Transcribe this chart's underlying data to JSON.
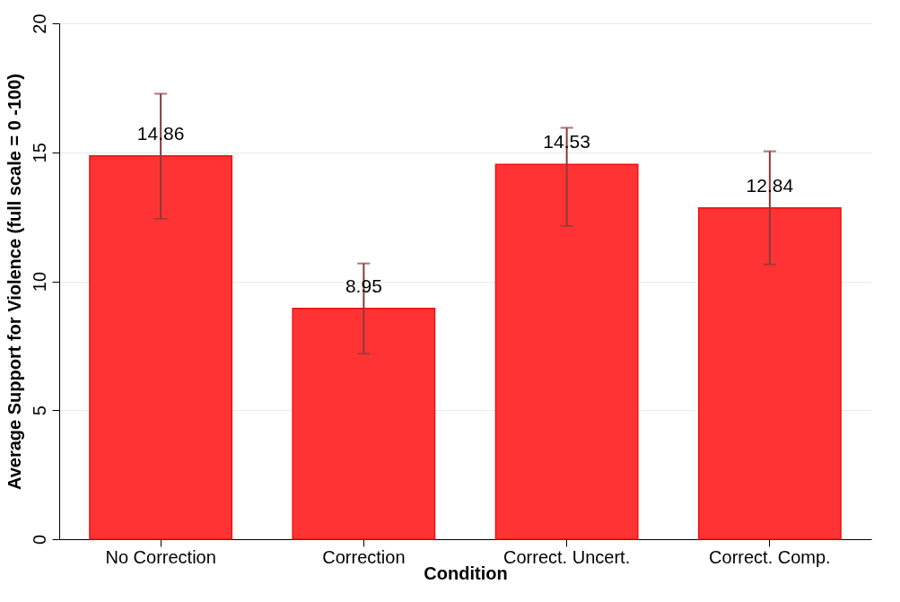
{
  "chart_data": {
    "type": "bar",
    "xlabel": "Condition",
    "ylabel": "Average Support for Violence (full scale = 0 -100)",
    "categories": [
      "No Correction",
      "Correction",
      "Correct. Uncert.",
      "Correct. Comp."
    ],
    "values": [
      14.86,
      8.95,
      14.53,
      12.84
    ],
    "errors": [
      [
        12.42,
        17.27
      ],
      [
        7.19,
        10.69
      ],
      [
        12.14,
        15.95
      ],
      [
        10.65,
        15.04
      ]
    ],
    "color": "#ff3333",
    "ylim": [
      0,
      20
    ],
    "yticks": [
      0,
      5,
      10,
      15,
      20
    ],
    "grid": "y",
    "data_labels": true
  }
}
